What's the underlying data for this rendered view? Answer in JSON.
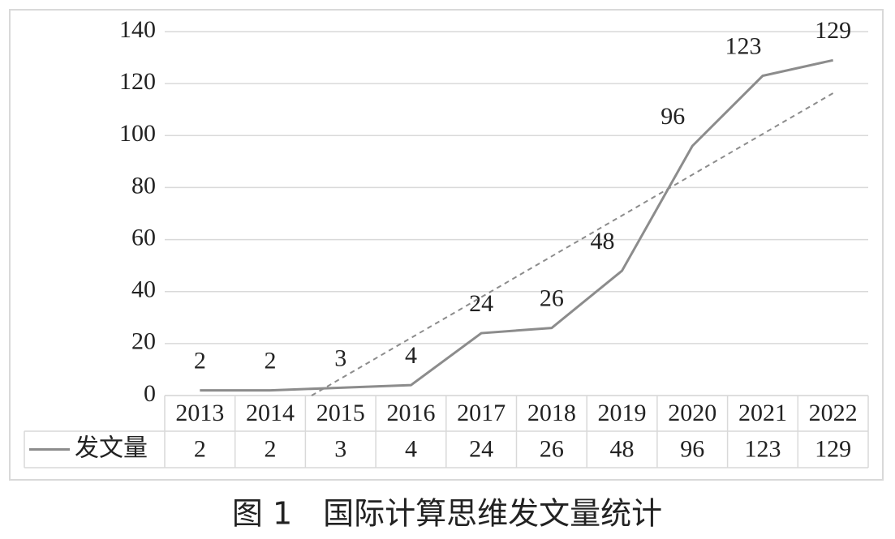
{
  "chart_data": {
    "type": "line",
    "title": "图 1　国际计算思维发文量统计",
    "categories": [
      "2013",
      "2014",
      "2015",
      "2016",
      "2017",
      "2018",
      "2019",
      "2020",
      "2021",
      "2022"
    ],
    "series": [
      {
        "name": "发文量",
        "color": "#8c8c8c",
        "values": [
          2,
          2,
          3,
          4,
          24,
          26,
          48,
          96,
          123,
          129
        ]
      }
    ],
    "ylim": [
      0,
      140
    ],
    "yticks": [
      0,
      20,
      40,
      60,
      80,
      100,
      120,
      140
    ],
    "grid": true,
    "trendline": "linear",
    "trendline_color": "#8c8c8c",
    "data_table": true
  }
}
